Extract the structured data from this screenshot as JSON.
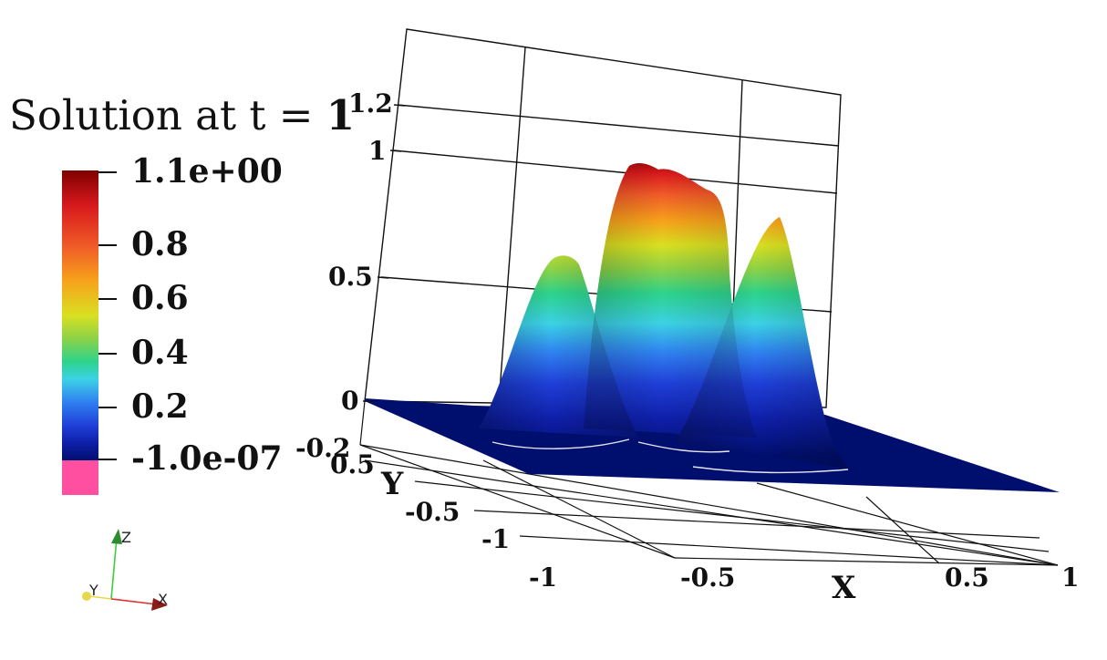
{
  "title": {
    "prefix": "Solution at t = ",
    "time": "1"
  },
  "colorbar": {
    "labels": [
      "1.1e+00",
      "0.8",
      "0.6",
      "0.4",
      "0.2",
      "-1.0e-07"
    ],
    "colors": [
      "#7f0000",
      "#d7191c",
      "#f7a21b",
      "#d9e021",
      "#3cd2e6",
      "#1f3fd8",
      "#000f6e"
    ],
    "nan_color": "#ff4fa0"
  },
  "axes": {
    "z_ticks": [
      "1.2",
      "1",
      "0.5",
      "0",
      "-0.2"
    ],
    "y_ticks": [
      "0.5",
      "-0.5",
      "-1"
    ],
    "x_ticks": [
      "-1",
      "-0.5",
      "0.5",
      "1"
    ],
    "x_name": "X",
    "y_name": "Y"
  },
  "triad": {
    "x": "X",
    "y": "Y",
    "z": "Z"
  }
}
